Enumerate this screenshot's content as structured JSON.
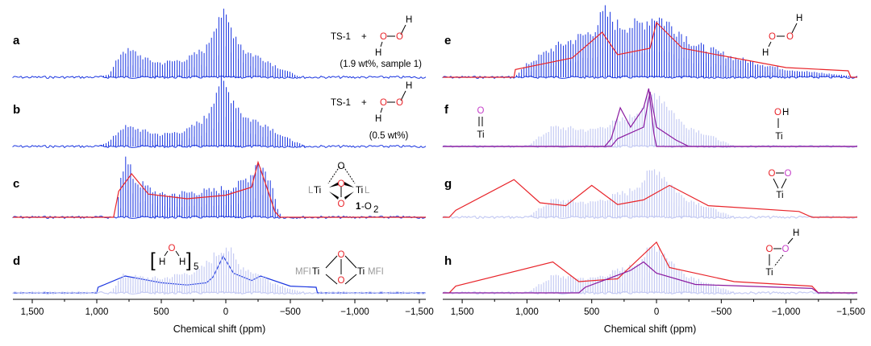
{
  "chart_data": {
    "type": "line",
    "title": "",
    "xlabel": "Chemical shift (ppm)",
    "xlim": [
      1650,
      -1550
    ],
    "ticks": [
      {
        "value": 1500,
        "label": "1,500"
      },
      {
        "value": 1000,
        "label": "1,000"
      },
      {
        "value": 500,
        "label": "500"
      },
      {
        "value": 0,
        "label": "0"
      },
      {
        "value": -500,
        "label": "−500"
      },
      {
        "value": -1000,
        "label": "−1,000"
      },
      {
        "value": -1500,
        "label": "−1,500"
      }
    ],
    "colors": {
      "experiment": "#1a35e0",
      "simulation": "#e8242a",
      "simulation_alt": "#8a1aa0",
      "faded": "#c5cbf3",
      "oxygen": "#e8242a",
      "oxygen_alt": "#c53fc9"
    },
    "left_panels": [
      {
        "label": "a",
        "series": [
          {
            "name": "experimental spectrum",
            "envelope": [
              [
                1000,
                0.0
              ],
              [
                900,
                0.05
              ],
              [
                800,
                0.42
              ],
              [
                700,
                0.38
              ],
              [
                600,
                0.26
              ],
              [
                500,
                0.22
              ],
              [
                300,
                0.28
              ],
              [
                150,
                0.45
              ],
              [
                50,
                1.0
              ],
              [
                0,
                0.9
              ],
              [
                -150,
                0.4
              ],
              [
                -300,
                0.28
              ],
              [
                -400,
                0.16
              ],
              [
                -550,
                0.03
              ],
              [
                -600,
                0.0
              ]
            ]
          }
        ],
        "annotation": {
          "text": "TS-1",
          "plus": "+",
          "molecule": "H–O–O–H",
          "atoms": [
            "O",
            "O",
            "H",
            "H"
          ],
          "note": "(1.9 wt%, sample 1)"
        }
      },
      {
        "label": "b",
        "series": [
          {
            "name": "experimental spectrum",
            "envelope": [
              [
                1000,
                0.0
              ],
              [
                900,
                0.08
              ],
              [
                800,
                0.3
              ],
              [
                700,
                0.28
              ],
              [
                600,
                0.22
              ],
              [
                500,
                0.18
              ],
              [
                300,
                0.25
              ],
              [
                150,
                0.45
              ],
              [
                50,
                1.0
              ],
              [
                0,
                0.9
              ],
              [
                -150,
                0.45
              ],
              [
                -300,
                0.35
              ],
              [
                -450,
                0.15
              ],
              [
                -600,
                0.02
              ]
            ]
          }
        ],
        "annotation": {
          "text": "TS-1",
          "plus": "+",
          "molecule": "H–O–O–H",
          "atoms": [
            "O",
            "O",
            "H",
            "H"
          ],
          "note": "(0.5 wt%)"
        }
      },
      {
        "label": "c",
        "series": [
          {
            "name": "experimental spectrum",
            "envelope": [
              [
                850,
                0.0
              ],
              [
                820,
                0.7
              ],
              [
                780,
                1.0
              ],
              [
                700,
                0.62
              ],
              [
                500,
                0.38
              ],
              [
                300,
                0.42
              ],
              [
                100,
                0.45
              ],
              [
                -100,
                0.55
              ],
              [
                -200,
                0.75
              ],
              [
                -250,
                1.0
              ],
              [
                -350,
                0.6
              ],
              [
                -420,
                0.0
              ]
            ]
          },
          {
            "name": "simulation",
            "envelope": [
              [
                870,
                0.0
              ],
              [
                830,
                0.45
              ],
              [
                730,
                0.75
              ],
              [
                600,
                0.4
              ],
              [
                300,
                0.32
              ],
              [
                0,
                0.38
              ],
              [
                -200,
                0.52
              ],
              [
                -250,
                0.95
              ],
              [
                -320,
                0.5
              ],
              [
                -380,
                0.1
              ],
              [
                -420,
                0.0
              ]
            ]
          }
        ],
        "annotation": {
          "atoms": [
            "O",
            "O",
            "O"
          ],
          "left_label": "L",
          "left_metal": "Ti",
          "right_metal": "Ti",
          "right_label": "L",
          "compound": "1",
          "suffix": "-O",
          "subscript": "2"
        }
      },
      {
        "label": "d",
        "series": [
          {
            "name": "simulation",
            "envelope": [
              [
                1000,
                0.0
              ],
              [
                990,
                0.1
              ],
              [
                780,
                0.3
              ],
              [
                500,
                0.18
              ],
              [
                300,
                0.14
              ],
              [
                150,
                0.18
              ],
              [
                100,
                0.28
              ],
              [
                20,
                0.65
              ],
              [
                -60,
                0.35
              ],
              [
                -200,
                0.22
              ],
              [
                -270,
                0.3
              ],
              [
                -500,
                0.12
              ],
              [
                -700,
                0.1
              ],
              [
                -710,
                0.0
              ]
            ]
          },
          {
            "name": "faded experimental",
            "envelope": [
              [
                900,
                0.0
              ],
              [
                800,
                0.3
              ],
              [
                500,
                0.25
              ],
              [
                200,
                0.4
              ],
              [
                0,
                0.85
              ],
              [
                -100,
                0.5
              ],
              [
                -400,
                0.15
              ],
              [
                -600,
                0.0
              ]
            ]
          }
        ],
        "annotation": {
          "bracket_open": "[",
          "bracket_close": "]",
          "atoms": [
            "H",
            "O",
            "H"
          ],
          "subscript": "5",
          "left_label": "MFI",
          "left_metal": "Ti",
          "right_metal": "Ti",
          "right_label": "MFI",
          "oxygens": [
            "O",
            "O"
          ]
        }
      }
    ],
    "right_panels": [
      {
        "label": "e",
        "series": [
          {
            "name": "experimental spectrum",
            "envelope": [
              [
                1100,
                0.0
              ],
              [
                1000,
                0.2
              ],
              [
                800,
                0.45
              ],
              [
                500,
                0.7
              ],
              [
                400,
                1.0
              ],
              [
                300,
                0.8
              ],
              [
                150,
                0.8
              ],
              [
                0,
                0.95
              ],
              [
                -150,
                0.75
              ],
              [
                -300,
                0.5
              ],
              [
                -600,
                0.3
              ],
              [
                -1000,
                0.12
              ],
              [
                -1500,
                0.02
              ]
            ]
          },
          {
            "name": "simulation",
            "envelope": [
              [
                1100,
                0.0
              ],
              [
                1090,
                0.12
              ],
              [
                650,
                0.3
              ],
              [
                420,
                0.7
              ],
              [
                300,
                0.35
              ],
              [
                50,
                0.45
              ],
              [
                0,
                0.85
              ],
              [
                -200,
                0.45
              ],
              [
                -1000,
                0.15
              ],
              [
                -1480,
                0.1
              ],
              [
                -1500,
                0.0
              ]
            ]
          }
        ],
        "annotation": {
          "atoms": [
            "O",
            "O"
          ],
          "hydrogens": [
            "H",
            "H"
          ]
        }
      },
      {
        "label": "f",
        "series": [
          {
            "name": "simulation Ti=O",
            "envelope": [
              [
                400,
                0.0
              ],
              [
                350,
                0.12
              ],
              [
                280,
                0.6
              ],
              [
                200,
                0.3
              ],
              [
                100,
                0.6
              ],
              [
                60,
                0.9
              ],
              [
                20,
                0.2
              ],
              [
                0,
                0.0
              ]
            ]
          },
          {
            "name": "simulation Ti–OH",
            "envelope": [
              [
                350,
                0.0
              ],
              [
                300,
                0.12
              ],
              [
                100,
                0.3
              ],
              [
                50,
                0.85
              ],
              [
                0,
                0.3
              ],
              [
                -150,
                0.1
              ],
              [
                -250,
                0.0
              ]
            ]
          },
          {
            "name": "faded experimental",
            "envelope": [
              [
                1000,
                0.0
              ],
              [
                800,
                0.3
              ],
              [
                500,
                0.25
              ],
              [
                200,
                0.45
              ],
              [
                0,
                0.85
              ],
              [
                -200,
                0.35
              ],
              [
                -600,
                0.0
              ]
            ]
          }
        ],
        "annotation": {
          "left": {
            "atom": "O",
            "bond": "=",
            "metal": "Ti"
          },
          "right": {
            "atom": "O",
            "h": "H",
            "metal": "Ti"
          }
        }
      },
      {
        "label": "g",
        "series": [
          {
            "name": "simulation",
            "envelope": [
              [
                1600,
                0.0
              ],
              [
                1550,
                0.12
              ],
              [
                1100,
                0.65
              ],
              [
                900,
                0.25
              ],
              [
                700,
                0.2
              ],
              [
                500,
                0.55
              ],
              [
                300,
                0.22
              ],
              [
                100,
                0.3
              ],
              [
                -100,
                0.55
              ],
              [
                -400,
                0.2
              ],
              [
                -1100,
                0.1
              ],
              [
                -1200,
                0.0
              ]
            ]
          },
          {
            "name": "faded experimental",
            "envelope": [
              [
                1000,
                0.0
              ],
              [
                800,
                0.3
              ],
              [
                500,
                0.25
              ],
              [
                200,
                0.45
              ],
              [
                0,
                0.85
              ],
              [
                -200,
                0.35
              ],
              [
                -600,
                0.0
              ]
            ]
          }
        ],
        "annotation": {
          "atoms": [
            "O",
            "O"
          ],
          "metal": "Ti"
        }
      },
      {
        "label": "h",
        "series": [
          {
            "name": "simulation",
            "envelope": [
              [
                1600,
                0.0
              ],
              [
                1550,
                0.12
              ],
              [
                800,
                0.55
              ],
              [
                600,
                0.2
              ],
              [
                300,
                0.25
              ],
              [
                0,
                0.9
              ],
              [
                -100,
                0.45
              ],
              [
                -600,
                0.2
              ],
              [
                -1200,
                0.12
              ],
              [
                -1250,
                0.0
              ]
            ]
          },
          {
            "name": "simulation alt",
            "envelope": [
              [
                600,
                0.0
              ],
              [
                550,
                0.1
              ],
              [
                200,
                0.4
              ],
              [
                100,
                0.55
              ],
              [
                0,
                0.35
              ],
              [
                -300,
                0.15
              ],
              [
                -1200,
                0.08
              ],
              [
                -1250,
                0.0
              ]
            ]
          },
          {
            "name": "faded experimental",
            "envelope": [
              [
                1000,
                0.0
              ],
              [
                800,
                0.3
              ],
              [
                500,
                0.25
              ],
              [
                200,
                0.45
              ],
              [
                0,
                0.85
              ],
              [
                -200,
                0.35
              ],
              [
                -600,
                0.0
              ]
            ]
          }
        ],
        "annotation": {
          "atoms": [
            "O",
            "O"
          ],
          "h": "H",
          "metal": "Ti"
        }
      }
    ]
  }
}
